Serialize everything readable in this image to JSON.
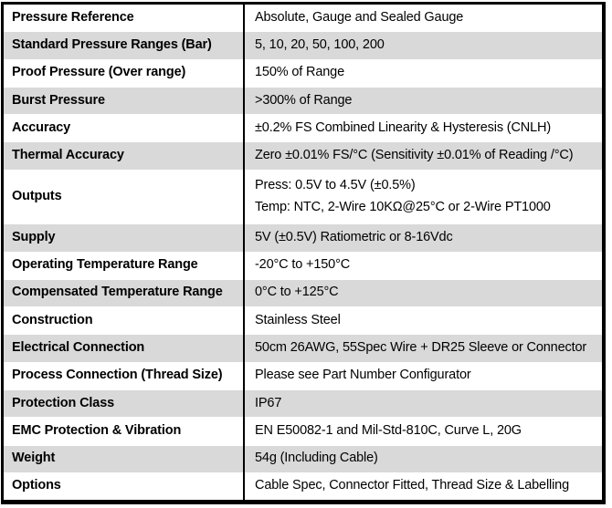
{
  "colors": {
    "background": "#ffffff",
    "border": "#000000",
    "row_shade": "#d9d9d9",
    "text": "#000000"
  },
  "table": {
    "rows": [
      {
        "label": "Pressure Reference",
        "value_lines": [
          "Absolute, Gauge and Sealed Gauge"
        ]
      },
      {
        "label": "Standard Pressure Ranges (Bar)",
        "value_lines": [
          "5, 10, 20, 50, 100, 200"
        ]
      },
      {
        "label": "Proof Pressure (Over range)",
        "value_lines": [
          "150% of Range"
        ]
      },
      {
        "label": "Burst Pressure",
        "value_lines": [
          ">300% of Range"
        ]
      },
      {
        "label": "Accuracy",
        "value_lines": [
          "±0.2% FS Combined Linearity & Hysteresis (CNLH)"
        ]
      },
      {
        "label": "Thermal Accuracy",
        "value_lines": [
          "Zero ±0.01% FS/°C (Sensitivity ±0.01% of Reading /°C)"
        ]
      },
      {
        "label": "Outputs",
        "value_lines": [
          "Press: 0.5V to 4.5V (±0.5%)",
          "Temp: NTC, 2-Wire 10KΩ@25°C or 2-Wire PT1000"
        ]
      },
      {
        "label": "Supply",
        "value_lines": [
          "5V (±0.5V) Ratiometric or 8-16Vdc"
        ]
      },
      {
        "label": "Operating Temperature Range",
        "value_lines": [
          "-20°C to +150°C"
        ]
      },
      {
        "label": "Compensated Temperature Range",
        "value_lines": [
          "0°C to +125°C"
        ]
      },
      {
        "label": "Construction",
        "value_lines": [
          "Stainless Steel"
        ]
      },
      {
        "label": "Electrical Connection",
        "value_lines": [
          "50cm 26AWG, 55Spec Wire + DR25 Sleeve or Connector"
        ]
      },
      {
        "label": "Process Connection (Thread Size)",
        "value_lines": [
          "Please see Part Number Configurator"
        ]
      },
      {
        "label": "Protection Class",
        "value_lines": [
          "IP67"
        ]
      },
      {
        "label": "EMC Protection & Vibration",
        "value_lines": [
          "EN E50082-1 and Mil-Std-810C, Curve L, 20G"
        ]
      },
      {
        "label": "Weight",
        "value_lines": [
          "54g (Including Cable)"
        ]
      },
      {
        "label": "Options",
        "value_lines": [
          "Cable Spec, Connector Fitted, Thread Size & Labelling"
        ]
      }
    ]
  }
}
